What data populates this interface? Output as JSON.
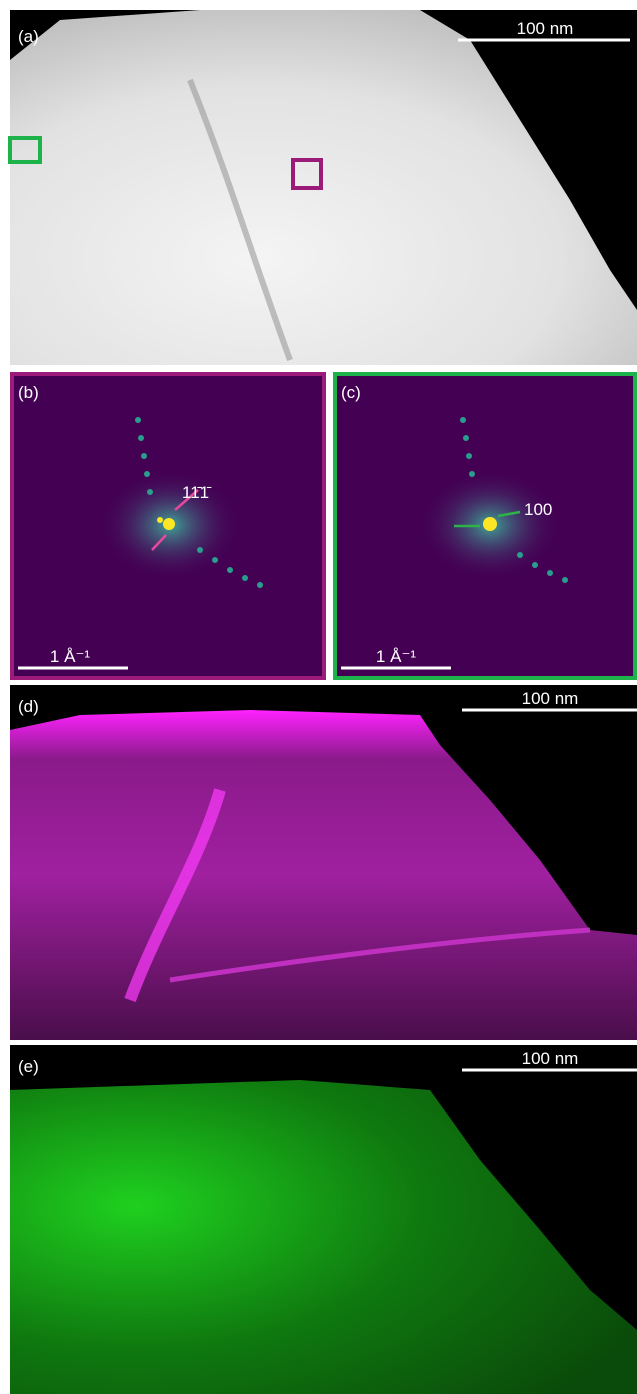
{
  "panels": [
    {
      "label": "(a)",
      "scale_bar": "100 nm"
    },
    {
      "label": "(b)",
      "scale_bar": "1 Å⁻¹",
      "annotation": "11̄1̄"
    },
    {
      "label": "(c)",
      "scale_bar": "1 Å⁻¹",
      "annotation": "100"
    },
    {
      "label": "(d)",
      "scale_bar": "100 nm"
    },
    {
      "label": "(e)",
      "scale_bar": "100 nm"
    }
  ]
}
